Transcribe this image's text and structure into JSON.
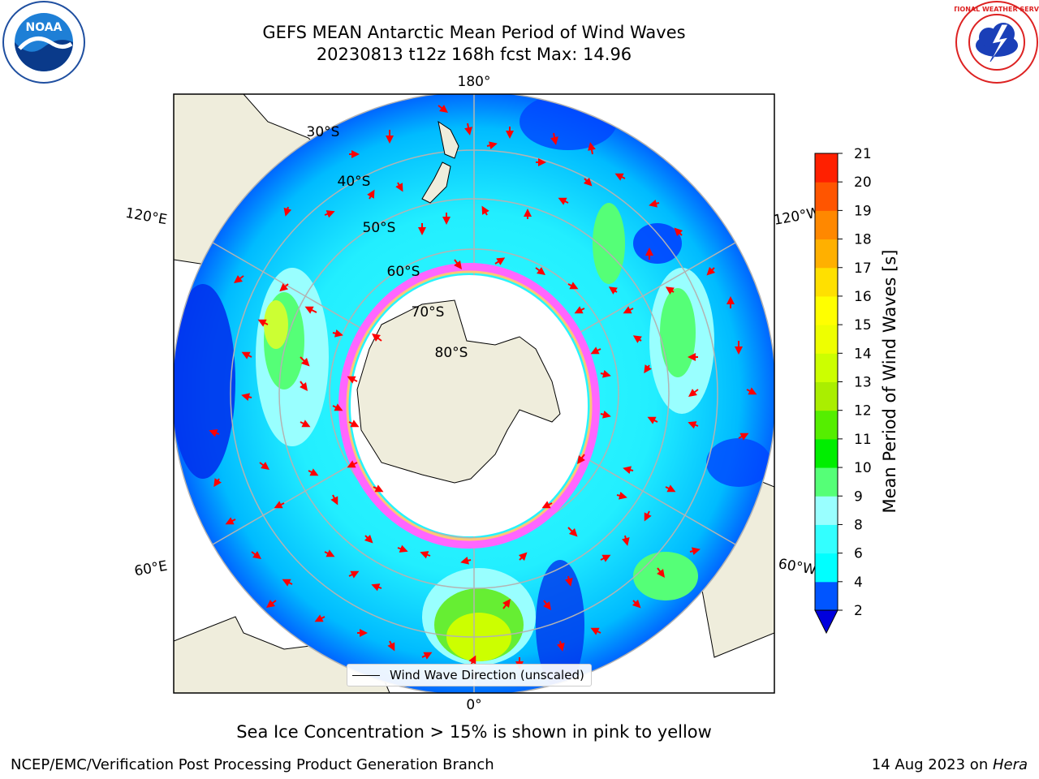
{
  "header": {
    "title_line1": "GEFS MEAN Antarctic Mean Period of Wind Waves",
    "title_line2": "20230813 t12z 168h fcst   Max: 14.96"
  },
  "logos": {
    "left": {
      "icon": "noaa-logo",
      "text": "NOAA"
    },
    "right": {
      "icon": "national-weather-service-logo",
      "text": "NATIONAL WEATHER SERVICE"
    }
  },
  "map": {
    "projection": "south-polar-stereographic",
    "longitude_labels": {
      "top": "180°",
      "bottom": "0°",
      "left_upper": "120°E",
      "left_lower": "60°E",
      "right_upper": "120°W",
      "right_lower": "60°W"
    },
    "latitude_labels": [
      "30°S",
      "40°S",
      "50°S",
      "60°S",
      "70°S",
      "80°S"
    ],
    "legend_label": "Wind Wave Direction (unscaled)",
    "colors": {
      "land": "#efeddc",
      "ocean_outside": "#ffffff",
      "ice_edge": "#ff66ff",
      "arrow": "#ff0000"
    }
  },
  "colorbar": {
    "label": "Mean Period of Wind Waves [s]",
    "ticks": [
      "2",
      "4",
      "6",
      "8",
      "9",
      "10",
      "11",
      "12",
      "13",
      "14",
      "15",
      "16",
      "17",
      "18",
      "19",
      "20",
      "21"
    ],
    "colors": [
      "#0055ff",
      "#00ffff",
      "#33ffff",
      "#99ffff",
      "#55ff77",
      "#00ee00",
      "#55ee00",
      "#aaee00",
      "#ccff00",
      "#eeff00",
      "#ffff00",
      "#ffe000",
      "#ffb000",
      "#ff8800",
      "#ff5500",
      "#ff2000"
    ],
    "under_color": "#0000dd"
  },
  "note": "Sea Ice Concentration > 15% is shown in pink to yellow",
  "footer": {
    "left": "NCEP/EMC/Verification Post Processing Product Generation Branch",
    "right_date": "14 Aug 2023 on ",
    "right_host": "Hera"
  }
}
